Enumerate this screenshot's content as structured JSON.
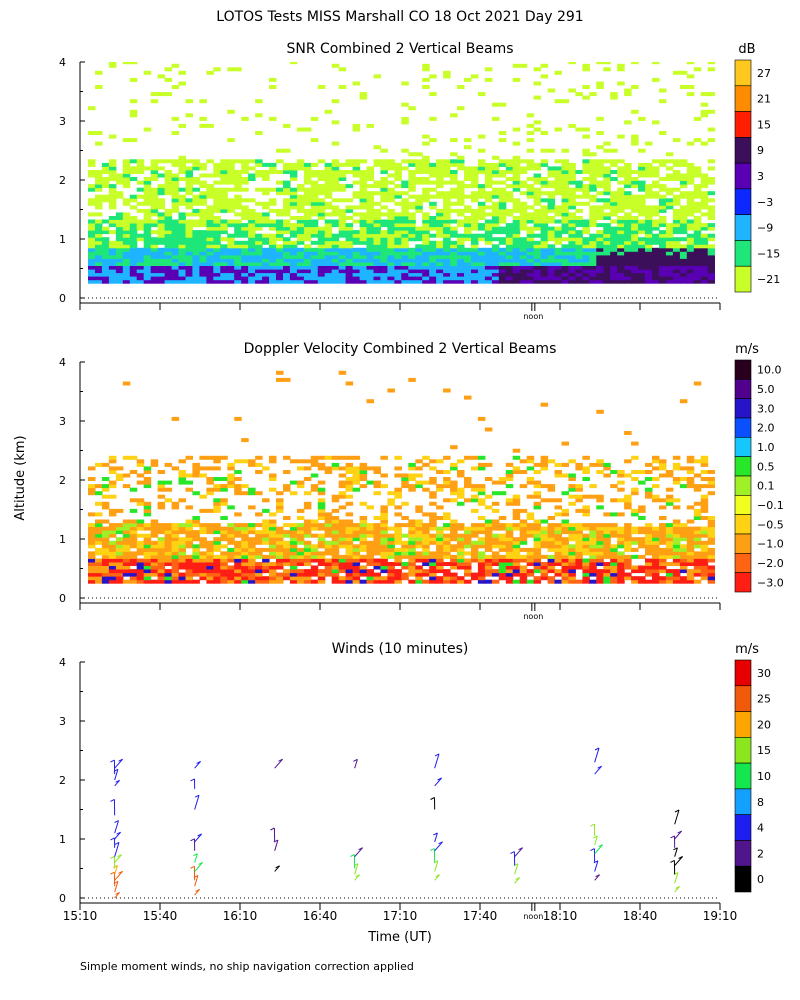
{
  "title": "LOTOS Tests MISS Marshall CO  18 Oct 2021 Day 291",
  "ylabel_shared": "Altitude (km)",
  "xlabel": "Time (UT)",
  "noon_label": "noon",
  "footnote": "Simple moment winds, no ship navigation correction applied",
  "x_ticks": [
    "15:10",
    "15:40",
    "16:10",
    "16:40",
    "17:10",
    "17:40",
    "18:10",
    "18:40",
    "19:10"
  ],
  "y_ticks": [
    "0",
    "1",
    "2",
    "3",
    "4"
  ],
  "chart_data": [
    {
      "type": "heatmap",
      "title": "SNR Combined 2 Vertical Beams",
      "x_range": [
        "15:10",
        "19:10"
      ],
      "ylim": [
        0,
        4
      ],
      "ylabel": "Altitude (km)",
      "colorbar": {
        "unit": "dB",
        "labels": [
          "27",
          "21",
          "15",
          "9",
          "3",
          "−3",
          "−9",
          "−15",
          "−21"
        ],
        "colors": [
          "#ffc81e",
          "#ff8c00",
          "#ff1e00",
          "#3c0f5a",
          "#5a00b4",
          "#0a28ff",
          "#1eb4ff",
          "#1ee678",
          "#c8ff28"
        ]
      },
      "layers": [
        {
          "band": "2.5-4.0 km",
          "level": "-21",
          "color": "#c8ff28",
          "coverage": "sparse"
        },
        {
          "band": "1.5-2.3 km",
          "level": "-21 to -15",
          "color": "#c8ff28",
          "coverage": "continuous"
        },
        {
          "band": "0.8-1.4 km",
          "level": "-15 to -9",
          "color": "#1ee678",
          "coverage": "continuous"
        },
        {
          "band": "0.3-0.9 km",
          "level": "-9 to -3",
          "color": "#1eb4ff",
          "coverage": "continuous"
        },
        {
          "band": "0.25-0.6 km",
          "level": "-3 to 9",
          "color": "#5a00b4",
          "coverage": "late period"
        }
      ]
    },
    {
      "type": "heatmap",
      "title": "Doppler Velocity Combined 2 Vertical Beams",
      "x_range": [
        "15:10",
        "19:10"
      ],
      "ylim": [
        0,
        4
      ],
      "ylabel": "Altitude (km)",
      "colorbar": {
        "unit": "m/s",
        "labels": [
          "10.0",
          "5.0",
          "3.0",
          "2.0",
          "1.0",
          "0.5",
          "0.1",
          "−0.1",
          "−0.5",
          "−1.0",
          "−2.0",
          "−3.0"
        ],
        "colors": [
          "#28001e",
          "#50008c",
          "#2814c8",
          "#0a50ff",
          "#14c8ff",
          "#28e628",
          "#a0f028",
          "#f0ff1e",
          "#ffd214",
          "#ffa014",
          "#ff6414",
          "#ff1e14"
        ]
      },
      "layers": [
        {
          "band": "1.7-2.3 km",
          "level": "-0.5 to -1.0",
          "color": "#ffa014",
          "coverage": "patchy"
        },
        {
          "band": "0.3-1.2 km",
          "level": "-0.5 to -2.0",
          "color": "#ffa014",
          "coverage": "continuous"
        },
        {
          "band": "0.25-0.6 km",
          "level": "-3.0 to 10.0",
          "color": "#ff1e14",
          "coverage": "noisy"
        }
      ]
    },
    {
      "type": "scatter",
      "title": "Winds (10 minutes)",
      "x_range": [
        "15:10",
        "19:10"
      ],
      "ylim": [
        0,
        4
      ],
      "ylabel": "Altitude (km)",
      "xlabel": "Time (UT)",
      "colorbar": {
        "unit": "m/s",
        "labels": [
          "30",
          "25",
          "20",
          "15",
          "10",
          "8",
          "4",
          "2",
          "0"
        ],
        "colors": [
          "#e60000",
          "#f05a0a",
          "#ffa500",
          "#8ce61e",
          "#14e650",
          "#14a0ff",
          "#1e1ef0",
          "#50148c",
          "#000000"
        ]
      },
      "profiles": [
        {
          "time": "15:23",
          "barbs": [
            {
              "alt": 0.0,
              "color": "#f05a0a"
            },
            {
              "alt": 0.1,
              "color": "#f05a0a"
            },
            {
              "alt": 0.2,
              "color": "#f05a0a"
            },
            {
              "alt": 0.3,
              "color": "#f05a0a"
            },
            {
              "alt": 0.4,
              "color": "#ffa500"
            },
            {
              "alt": 0.5,
              "color": "#8ce61e"
            },
            {
              "alt": 0.6,
              "color": "#8ce61e"
            },
            {
              "alt": 0.7,
              "color": "#1e1ef0"
            },
            {
              "alt": 0.85,
              "color": "#1e1ef0"
            },
            {
              "alt": 1.0,
              "color": "#1e1ef0"
            },
            {
              "alt": 1.1,
              "color": "#1e1ef0"
            },
            {
              "alt": 1.4,
              "color": "#1e1ef0"
            },
            {
              "alt": 1.9,
              "color": "#1e1ef0"
            },
            {
              "alt": 2.0,
              "color": "#1e1ef0"
            },
            {
              "alt": 2.1,
              "color": "#1e1ef0"
            },
            {
              "alt": 2.2,
              "color": "#1e1ef0"
            }
          ]
        },
        {
          "time": "15:53",
          "barbs": [
            {
              "alt": 0.05,
              "color": "#f05a0a"
            },
            {
              "alt": 0.2,
              "color": "#f05a0a"
            },
            {
              "alt": 0.3,
              "color": "#f05a0a"
            },
            {
              "alt": 0.45,
              "color": "#14e650"
            },
            {
              "alt": 0.6,
              "color": "#14e650"
            },
            {
              "alt": 0.8,
              "color": "#50148c"
            },
            {
              "alt": 0.95,
              "color": "#1e1ef0"
            },
            {
              "alt": 1.5,
              "color": "#1e1ef0"
            },
            {
              "alt": 1.85,
              "color": "#1e1ef0"
            },
            {
              "alt": 2.2,
              "color": "#1e1ef0"
            }
          ]
        },
        {
          "time": "16:23",
          "barbs": [
            {
              "alt": 0.45,
              "color": "#000000"
            },
            {
              "alt": 0.8,
              "color": "#50148c"
            },
            {
              "alt": 0.95,
              "color": "#50148c"
            },
            {
              "alt": 2.2,
              "color": "#50148c"
            }
          ]
        },
        {
          "time": "16:53",
          "barbs": [
            {
              "alt": 0.3,
              "color": "#8ce61e"
            },
            {
              "alt": 0.4,
              "color": "#8ce61e"
            },
            {
              "alt": 0.5,
              "color": "#14e650"
            },
            {
              "alt": 0.7,
              "color": "#50148c"
            },
            {
              "alt": 2.2,
              "color": "#50148c"
            }
          ]
        },
        {
          "time": "17:23",
          "barbs": [
            {
              "alt": 0.3,
              "color": "#8ce61e"
            },
            {
              "alt": 0.45,
              "color": "#8ce61e"
            },
            {
              "alt": 0.6,
              "color": "#14e650"
            },
            {
              "alt": 0.8,
              "color": "#1e1ef0"
            },
            {
              "alt": 0.95,
              "color": "#1e1ef0"
            },
            {
              "alt": 1.5,
              "color": "#000000"
            },
            {
              "alt": 1.9,
              "color": "#1e1ef0"
            },
            {
              "alt": 2.2,
              "color": "#1e1ef0"
            }
          ]
        },
        {
          "time": "17:53",
          "barbs": [
            {
              "alt": 0.25,
              "color": "#8ce61e"
            },
            {
              "alt": 0.4,
              "color": "#8ce61e"
            },
            {
              "alt": 0.55,
              "color": "#1e1ef0"
            },
            {
              "alt": 0.7,
              "color": "#50148c"
            }
          ]
        },
        {
          "time": "18:23",
          "barbs": [
            {
              "alt": 0.3,
              "color": "#50148c"
            },
            {
              "alt": 0.45,
              "color": "#1e1ef0"
            },
            {
              "alt": 0.6,
              "color": "#1e1ef0"
            },
            {
              "alt": 0.75,
              "color": "#14e650"
            },
            {
              "alt": 0.9,
              "color": "#8ce61e"
            },
            {
              "alt": 1.05,
              "color": "#8ce61e"
            },
            {
              "alt": 2.1,
              "color": "#1e1ef0"
            },
            {
              "alt": 2.3,
              "color": "#1e1ef0"
            }
          ]
        },
        {
          "time": "18:53",
          "barbs": [
            {
              "alt": 0.1,
              "color": "#8ce61e"
            },
            {
              "alt": 0.25,
              "color": "#8ce61e"
            },
            {
              "alt": 0.4,
              "color": "#000000"
            },
            {
              "alt": 0.55,
              "color": "#000000"
            },
            {
              "alt": 0.7,
              "color": "#000000"
            },
            {
              "alt": 0.85,
              "color": "#50148c"
            },
            {
              "alt": 1.0,
              "color": "#50148c"
            },
            {
              "alt": 1.25,
              "color": "#000000"
            }
          ]
        }
      ]
    }
  ]
}
